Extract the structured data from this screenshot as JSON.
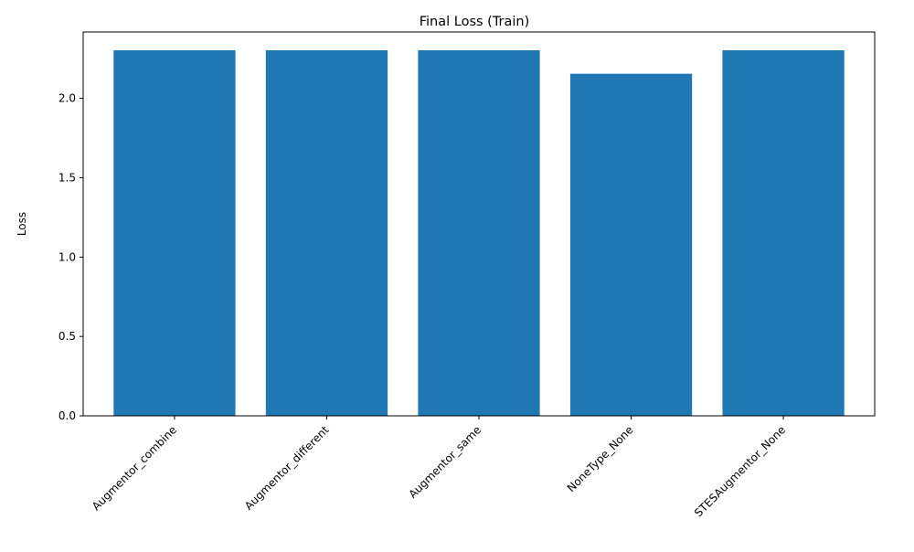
{
  "chart_data": {
    "type": "bar",
    "title": "Final Loss (Train)",
    "xlabel": "",
    "ylabel": "Loss",
    "categories": [
      "Augmentor_combine",
      "Augmentor_different",
      "Augmentor_same",
      "NoneType_None",
      "STESAugmentor_None"
    ],
    "values": [
      2.303,
      2.303,
      2.303,
      2.155,
      2.303
    ],
    "ylim": [
      0,
      2.418
    ],
    "yticks": [
      0.0,
      0.5,
      1.0,
      1.5,
      2.0
    ],
    "ytick_labels": [
      "0.0",
      "0.5",
      "1.0",
      "1.5",
      "2.0"
    ],
    "bar_color": "#1f77b4",
    "grid": false,
    "legend": "none"
  }
}
